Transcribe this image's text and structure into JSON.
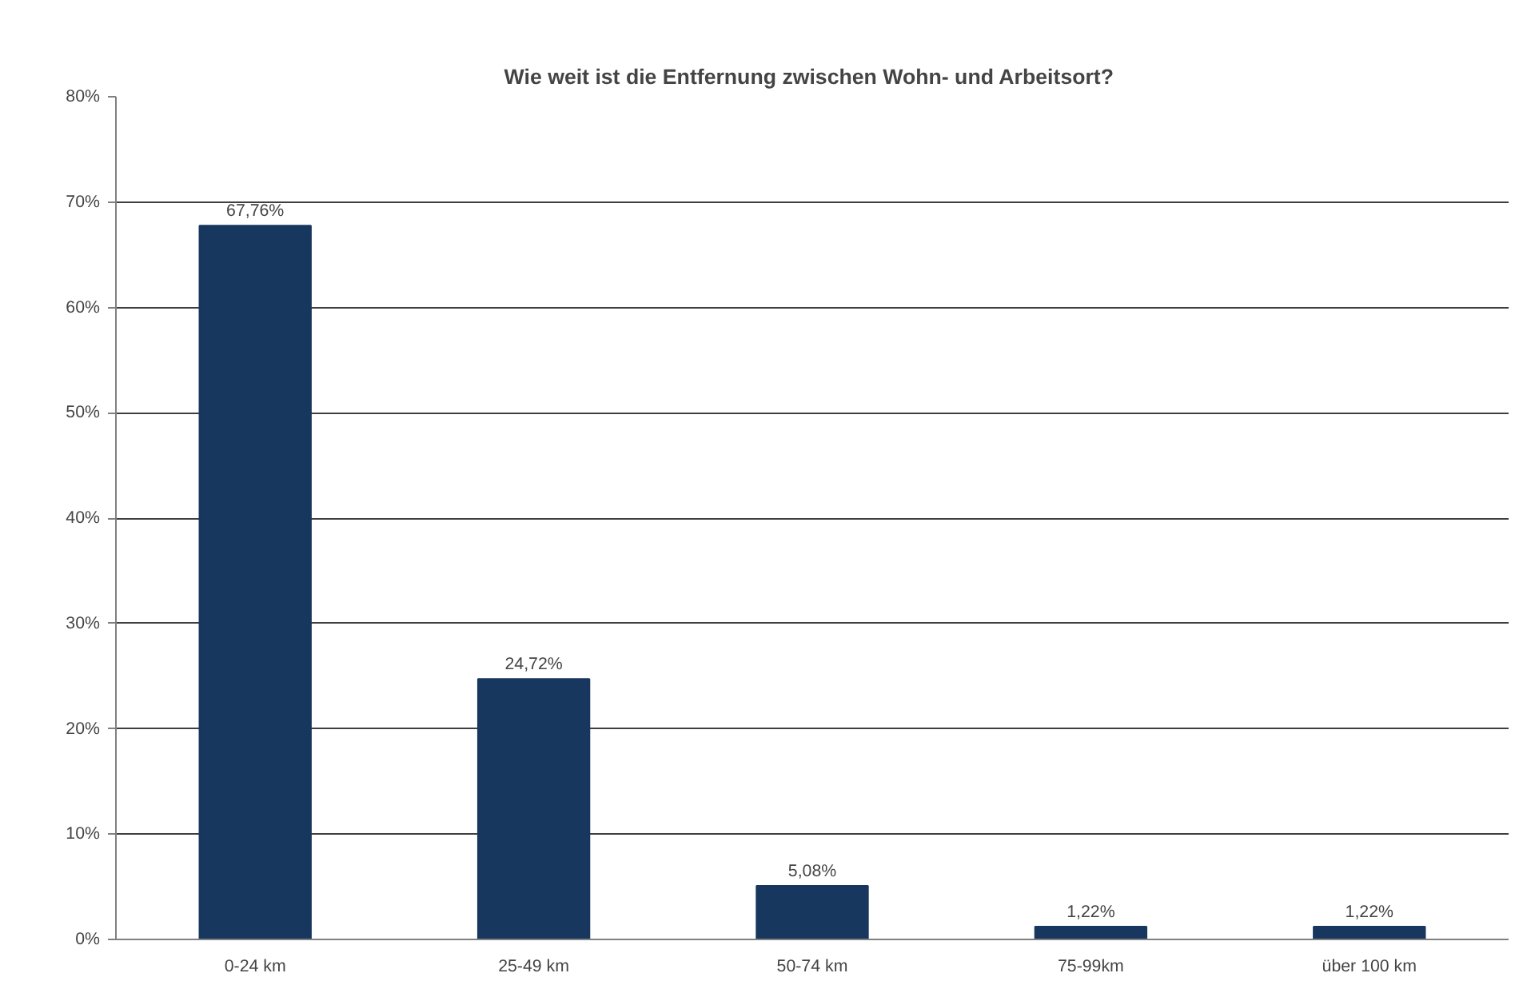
{
  "chart_data": {
    "type": "bar",
    "title": "Wie weit ist die Entfernung zwischen Wohn- und  Arbeitsort?",
    "categories": [
      "0-24 km",
      "25-49 km",
      "50-74 km",
      "75-99km",
      "über 100 km"
    ],
    "values": [
      67.76,
      24.72,
      5.08,
      1.22,
      1.22
    ],
    "value_labels": [
      "67,76%",
      "24,72%",
      "5,08%",
      "1,22%",
      "1,22%"
    ],
    "color": "#17375e",
    "ylim": [
      0,
      80
    ],
    "yticks": [
      {
        "value": 0,
        "label": "0%"
      },
      {
        "value": 10,
        "label": "10%"
      },
      {
        "value": 20,
        "label": "20%"
      },
      {
        "value": 30,
        "label": "30%"
      },
      {
        "value": 40,
        "label": "40%"
      },
      {
        "value": 50,
        "label": "50%"
      },
      {
        "value": 60,
        "label": "60%"
      },
      {
        "value": 70,
        "label": "70%"
      },
      {
        "value": 80,
        "label": "80%"
      }
    ],
    "grid": "y"
  }
}
